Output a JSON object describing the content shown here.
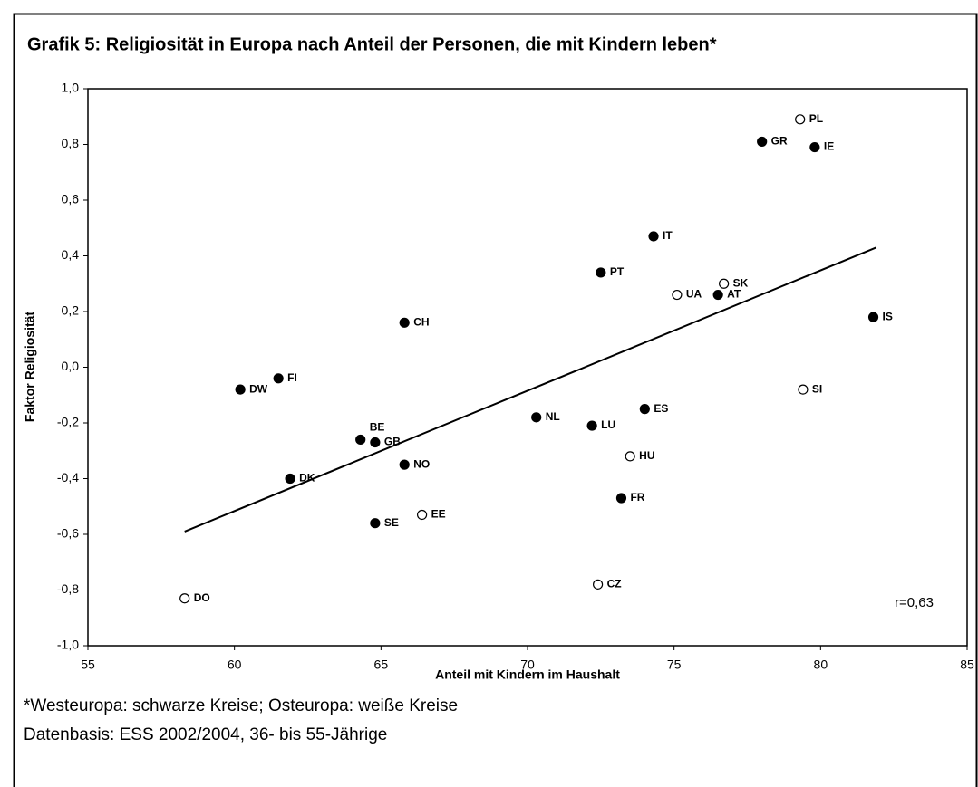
{
  "chart_data": {
    "type": "scatter",
    "title": "Grafik 5: Religiosität in Europa nach Anteil der Personen, die mit Kindern leben*",
    "x_label": "Anteil mit Kindern im Haushalt",
    "y_label": "Faktor Religiosität",
    "annotation": "r=0,63",
    "footnotes": [
      "*Westeuropa: schwarze Kreise; Osteuropa: weiße Kreise",
      "Datenbasis: ESS 2002/2004, 36- bis 55-Jährige"
    ],
    "labels": [
      "PL",
      "GR",
      "IE",
      "IT",
      "PT",
      "UA",
      "SK",
      "AT",
      "IS",
      "CH",
      "SI",
      "FI",
      "DW",
      "ES",
      "NL",
      "LU",
      "BE",
      "GB",
      "HU",
      "NO",
      "DK",
      "FR",
      "SE",
      "EE",
      "CZ",
      "DO"
    ],
    "x": [
      79.3,
      78.0,
      79.8,
      74.3,
      72.5,
      75.1,
      76.7,
      76.5,
      81.8,
      65.8,
      79.4,
      61.5,
      60.2,
      74.0,
      70.3,
      72.2,
      64.3,
      64.8,
      73.5,
      65.8,
      61.9,
      73.2,
      64.8,
      66.4,
      72.4,
      58.3
    ],
    "y": [
      0.89,
      0.81,
      0.79,
      0.47,
      0.34,
      0.26,
      0.3,
      0.26,
      0.18,
      0.16,
      -0.08,
      -0.04,
      -0.08,
      -0.15,
      -0.18,
      -0.21,
      -0.26,
      -0.27,
      -0.32,
      -0.35,
      -0.4,
      -0.47,
      -0.56,
      -0.53,
      -0.78,
      -0.83
    ],
    "filled": [
      false,
      true,
      true,
      true,
      true,
      false,
      false,
      true,
      true,
      true,
      false,
      true,
      true,
      true,
      true,
      true,
      true,
      true,
      false,
      true,
      true,
      true,
      true,
      false,
      false,
      false
    ],
    "color": "#000000",
    "trendline": {
      "x": [
        58.3,
        81.9
      ],
      "y": [
        -0.59,
        0.43
      ]
    },
    "xlim": [
      55,
      85
    ],
    "xticks": [
      55,
      60,
      65,
      70,
      75,
      80,
      85
    ],
    "ylim": [
      -1.0,
      1.0
    ],
    "yticks": [
      {
        "value": -1.0,
        "label": "-1,0"
      },
      {
        "value": -0.8,
        "label": "-0,8"
      },
      {
        "value": -0.6,
        "label": "-0,6"
      },
      {
        "value": -0.4,
        "label": "-0,4"
      },
      {
        "value": -0.2,
        "label": "-0,2"
      },
      {
        "value": 0,
        "label": "0,0"
      },
      {
        "value": 0.2,
        "label": "0,2"
      },
      {
        "value": 0.4,
        "label": "0,4"
      },
      {
        "value": 0.6,
        "label": "0,6"
      },
      {
        "value": 0.8,
        "label": "0,8"
      },
      {
        "value": 1.0,
        "label": "1,0"
      }
    ]
  }
}
